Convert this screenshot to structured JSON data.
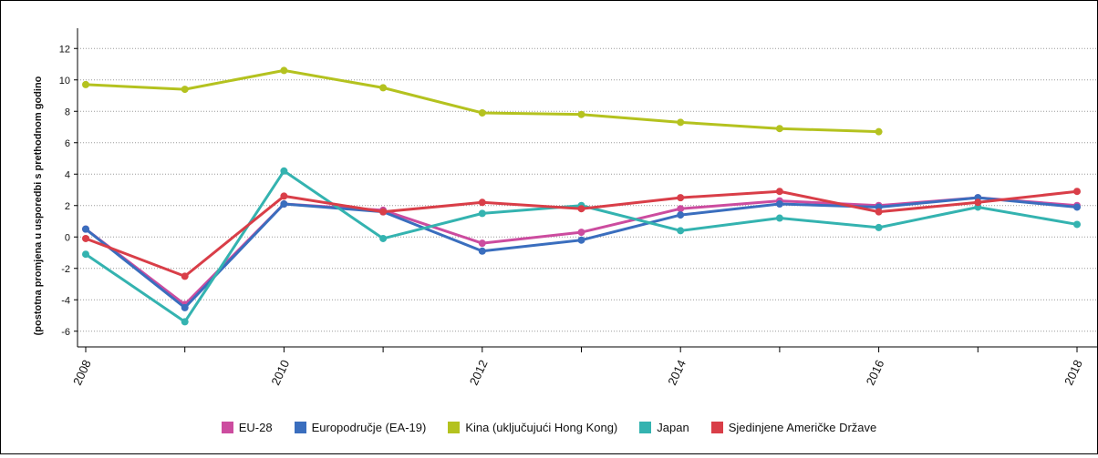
{
  "chart_data": {
    "type": "line",
    "ylabel": "(postotna promjena u usporedbi s prethodnom godino",
    "x": [
      "2008",
      "2009",
      "2010",
      "2011",
      "2012",
      "2013",
      "2014",
      "2015",
      "2016",
      "2017",
      "2018"
    ],
    "x_tick_labels": [
      "2008",
      "2010",
      "2012",
      "2014",
      "2016",
      "2018"
    ],
    "y_ticks": [
      "12",
      "10",
      "8",
      "6",
      "4",
      "2",
      "0",
      "-2",
      "-4",
      "-6"
    ],
    "ylim": [
      -7,
      13
    ],
    "grid": "horizontal dotted",
    "legend_position": "bottom",
    "series": [
      {
        "name": "EU-28",
        "color": "#cc4c9f",
        "values": [
          0.5,
          -4.3,
          2.1,
          1.7,
          -0.4,
          0.3,
          1.8,
          2.3,
          2.0,
          2.5,
          2.0
        ]
      },
      {
        "name": "Europodručje (EA-19)",
        "color": "#3a6ebe",
        "values": [
          0.5,
          -4.5,
          2.1,
          1.6,
          -0.9,
          -0.2,
          1.4,
          2.1,
          1.9,
          2.5,
          1.9
        ]
      },
      {
        "name": "Kina (uključujući Hong Kong)",
        "color": "#b4c21f",
        "values": [
          9.7,
          9.4,
          10.6,
          9.5,
          7.9,
          7.8,
          7.3,
          6.9,
          6.7,
          null,
          null
        ]
      },
      {
        "name": "Japan",
        "color": "#34b3b0",
        "values": [
          -1.1,
          -5.4,
          4.2,
          -0.1,
          1.5,
          2.0,
          0.4,
          1.2,
          0.6,
          1.9,
          0.8
        ]
      },
      {
        "name": "Sjedinjene Američke Države",
        "color": "#d93e48",
        "values": [
          -0.1,
          -2.5,
          2.6,
          1.6,
          2.2,
          1.8,
          2.5,
          2.9,
          1.6,
          2.2,
          2.9
        ]
      }
    ]
  }
}
